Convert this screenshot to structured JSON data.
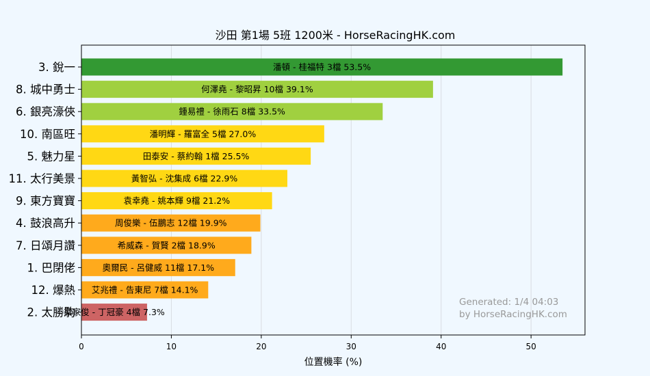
{
  "chart_data": {
    "type": "bar",
    "orientation": "horizontal",
    "title": "沙田  第1場  5班  1200米 - HorseRacingHK.com",
    "xlabel": "位置機率 (%)",
    "ylabel": "",
    "xlim": [
      0,
      56
    ],
    "xticks": [
      0,
      10,
      20,
      30,
      40,
      50
    ],
    "grid": true,
    "categories": [
      "3. 銳一",
      "8. 城中勇士",
      "6. 銀亮濠俠",
      "10. 南區旺",
      "5. 魅力星",
      "11. 太行美景",
      "9. 東方寶寶",
      "4. 鼓浪高升",
      "7. 日頌月讚",
      "1. 巴閉佬",
      "12. 爆熱",
      "2. 太勝駒"
    ],
    "values": [
      53.5,
      39.1,
      33.5,
      27.0,
      25.5,
      22.9,
      21.2,
      19.9,
      18.9,
      17.1,
      14.1,
      7.3
    ],
    "bar_labels": [
      "潘頓 - 桂福特 3檔  53.5%",
      "何澤堯 - 黎昭昇 10檔  39.1%",
      "鍾易禮 - 徐雨石 8檔  33.5%",
      "潘明輝 - 羅富全 5檔  27.0%",
      "田泰安 - 蔡約翰 1檔  25.5%",
      "黃智弘 - 沈集成 6檔  22.9%",
      "袁幸堯 - 姚本輝 9檔  21.2%",
      "周俊樂 - 伍鵬志 12檔  19.9%",
      "希威森 - 賀賢 2檔  18.9%",
      "奧爾民 - 呂健威 11檔  17.1%",
      "艾兆禮 - 告東尼 7檔  14.1%",
      "梁家俊 - 丁冠豪 4檔  7.3%"
    ],
    "colors": [
      "#339933",
      "#a0d040",
      "#a0d040",
      "#ffd814",
      "#ffd814",
      "#ffd814",
      "#ffd814",
      "#ffaa1c",
      "#ffaa1c",
      "#ffaa1c",
      "#ffaa1c",
      "#cd6464"
    ],
    "footer": [
      "Generated: 1/4 04:03",
      "by HorseRacingHK.com"
    ]
  }
}
